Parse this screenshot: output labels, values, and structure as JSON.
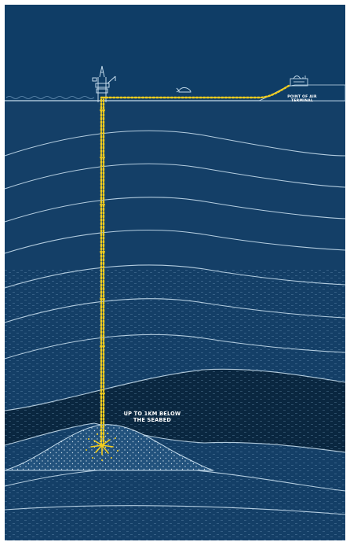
{
  "labels": {
    "terminal": "POINT OF AIR TERMINAL",
    "depth": "UP TO 1KM BELOW THE SEABED"
  },
  "colors": {
    "sky": "#0f3d66",
    "sea": "#143f67",
    "deep": "#0a2740",
    "reservoir": "#22527d",
    "strata_line": "#c5dcec",
    "pipeline": "#f2cd1f",
    "text": "#ffffff"
  },
  "icons": [
    "drilling-platform-icon",
    "whale-icon",
    "terminal-building-icon"
  ]
}
